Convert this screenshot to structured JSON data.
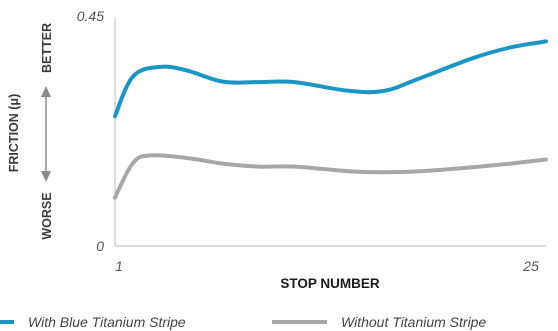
{
  "chart_data": {
    "type": "line",
    "xlabel": "STOP NUMBER",
    "ylabel": "FRICTION (μ)",
    "y_direction_labels": {
      "better": "BETTER",
      "worse": "WORSE"
    },
    "xlim": [
      1,
      25
    ],
    "ylim": [
      0,
      0.45
    ],
    "x_tick_labels": [
      "1",
      "25"
    ],
    "y_tick_labels": [
      "0",
      "0.45"
    ],
    "grid": false,
    "legend_position": "bottom",
    "series": [
      {
        "name": "With Blue Titanium Stripe",
        "color": "#1b96c4",
        "x": [
          1,
          2,
          3.5,
          5,
          7,
          9,
          11,
          14,
          16,
          18,
          21,
          23,
          25
        ],
        "y": [
          0.255,
          0.333,
          0.352,
          0.345,
          0.323,
          0.322,
          0.322,
          0.305,
          0.305,
          0.33,
          0.37,
          0.39,
          0.402
        ]
      },
      {
        "name": "Without Titanium Stripe",
        "color": "#a7a7a7",
        "x": [
          1,
          2,
          3,
          5,
          7,
          9,
          11,
          14,
          16,
          18,
          21,
          23,
          25
        ],
        "y": [
          0.095,
          0.163,
          0.178,
          0.173,
          0.162,
          0.156,
          0.156,
          0.147,
          0.145,
          0.147,
          0.155,
          0.162,
          0.17
        ]
      }
    ]
  }
}
